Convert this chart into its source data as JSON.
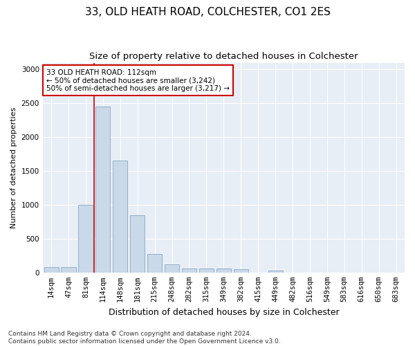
{
  "title1": "33, OLD HEATH ROAD, COLCHESTER, CO1 2ES",
  "title2": "Size of property relative to detached houses in Colchester",
  "xlabel": "Distribution of detached houses by size in Colchester",
  "ylabel": "Number of detached properties",
  "categories": [
    "14sqm",
    "47sqm",
    "81sqm",
    "114sqm",
    "148sqm",
    "181sqm",
    "215sqm",
    "248sqm",
    "282sqm",
    "315sqm",
    "349sqm",
    "382sqm",
    "415sqm",
    "449sqm",
    "482sqm",
    "516sqm",
    "549sqm",
    "583sqm",
    "616sqm",
    "650sqm",
    "683sqm"
  ],
  "values": [
    75,
    75,
    1000,
    2450,
    1650,
    850,
    275,
    120,
    60,
    55,
    55,
    50,
    0,
    30,
    0,
    0,
    0,
    0,
    0,
    0,
    0
  ],
  "bar_color": "#c9d9e9",
  "bar_edge_color": "#7799bb",
  "vline_x_index": 2.5,
  "vline_color": "#cc0000",
  "annotation_text": "33 OLD HEATH ROAD: 112sqm\n← 50% of detached houses are smaller (3,242)\n50% of semi-detached houses are larger (3,217) →",
  "annotation_box_color": "white",
  "annotation_box_edge_color": "#cc0000",
  "ylim": [
    0,
    3100
  ],
  "yticks": [
    0,
    500,
    1000,
    1500,
    2000,
    2500,
    3000
  ],
  "bg_color": "#e8eef5",
  "footer": "Contains HM Land Registry data © Crown copyright and database right 2024.\nContains public sector information licensed under the Open Government Licence v3.0.",
  "title1_fontsize": 11,
  "title2_fontsize": 9.5,
  "xlabel_fontsize": 9,
  "ylabel_fontsize": 8,
  "tick_fontsize": 7.5,
  "footer_fontsize": 6.5,
  "annot_fontsize": 7.5
}
